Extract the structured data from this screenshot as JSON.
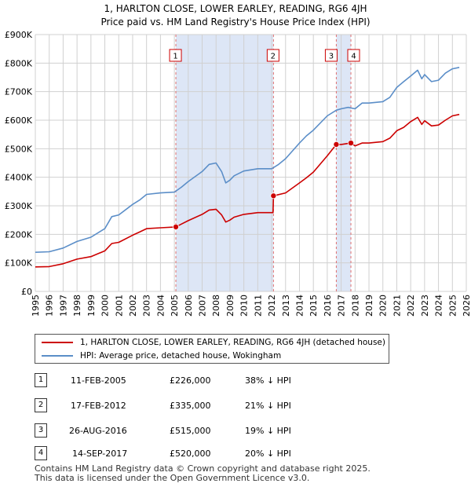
{
  "title_line1": "1, HARLTON CLOSE, LOWER EARLEY, READING, RG6 4JH",
  "title_line2": "Price paid vs. HM Land Registry's House Price Index (HPI)",
  "colors": {
    "property": "#cc0000",
    "hpi": "#5b8ec8",
    "shade": "#dde6f6",
    "marker_box": "#cc0000",
    "vline": "#e07070",
    "grid": "#d0d0d0"
  },
  "legend": {
    "property_label": "1, HARLTON CLOSE, LOWER EARLEY, READING, RG6 4JH (detached house)",
    "hpi_label": "HPI: Average price, detached house, Wokingham"
  },
  "chart_data": {
    "type": "line",
    "title": "1, HARLTON CLOSE, LOWER EARLEY, READING, RG6 4JH — Price paid vs. HM Land Registry's House Price Index (HPI)",
    "xlim": [
      1995,
      2026
    ],
    "ylim": [
      0,
      900000
    ],
    "x_ticks": [
      "1995",
      "1996",
      "1997",
      "1998",
      "1999",
      "2000",
      "2001",
      "2002",
      "2003",
      "2004",
      "2005",
      "2006",
      "2007",
      "2008",
      "2009",
      "2010",
      "2011",
      "2012",
      "2013",
      "2014",
      "2015",
      "2016",
      "2017",
      "2018",
      "2019",
      "2020",
      "2021",
      "2022",
      "2023",
      "2024",
      "2025",
      "2026"
    ],
    "y_ticks": [
      {
        "value": 0,
        "label": "£0"
      },
      {
        "value": 100000,
        "label": "£100K"
      },
      {
        "value": 200000,
        "label": "£200K"
      },
      {
        "value": 300000,
        "label": "£300K"
      },
      {
        "value": 400000,
        "label": "£400K"
      },
      {
        "value": 500000,
        "label": "£500K"
      },
      {
        "value": 600000,
        "label": "£600K"
      },
      {
        "value": 700000,
        "label": "£700K"
      },
      {
        "value": 800000,
        "label": "£800K"
      },
      {
        "value": 900000,
        "label": "£900K"
      }
    ],
    "shaded_ranges": [
      [
        2005.11,
        2012.13
      ],
      [
        2016.65,
        2017.7
      ]
    ],
    "series": [
      {
        "name": "HPI: Average price, detached house, Wokingham",
        "color": "#5b8ec8",
        "x": [
          1995,
          1996,
          1997,
          1998,
          1999,
          2000,
          2000.5,
          2001,
          2002,
          2002.5,
          2003,
          2004,
          2005,
          2005.5,
          2006,
          2007,
          2007.5,
          2008,
          2008.4,
          2008.7,
          2009,
          2009.3,
          2010,
          2011,
          2012,
          2012.5,
          2013,
          2014,
          2014.5,
          2015,
          2016,
          2016.65,
          2017,
          2017.5,
          2018,
          2018.5,
          2019,
          2020,
          2020.5,
          2021,
          2021.5,
          2022,
          2022.5,
          2022.8,
          2023,
          2023.5,
          2024,
          2024.5,
          2025,
          2025.5
        ],
        "y": [
          137000,
          139000,
          152000,
          175000,
          190000,
          220000,
          262000,
          268000,
          305000,
          320000,
          340000,
          345000,
          348000,
          365000,
          385000,
          420000,
          445000,
          450000,
          420000,
          380000,
          390000,
          405000,
          422000,
          430000,
          430000,
          445000,
          465000,
          520000,
          545000,
          565000,
          615000,
          635000,
          640000,
          645000,
          640000,
          660000,
          660000,
          665000,
          680000,
          715000,
          735000,
          755000,
          775000,
          745000,
          760000,
          735000,
          740000,
          765000,
          780000,
          785000
        ]
      },
      {
        "name": "1, HARLTON CLOSE, LOWER EARLEY, READING, RG6 4JH (detached house)",
        "color": "#cc0000",
        "x": [
          1995,
          1996,
          1997,
          1998,
          1999,
          2000,
          2000.5,
          2001,
          2002,
          2002.5,
          2003,
          2004,
          2005.11,
          2005.5,
          2006,
          2007,
          2007.5,
          2008,
          2008.4,
          2008.7,
          2009,
          2009.3,
          2010,
          2011,
          2012.1,
          2012.13,
          2013,
          2014,
          2014.5,
          2015,
          2016,
          2016.65,
          2017,
          2017.7,
          2018,
          2018.5,
          2019,
          2020,
          2020.5,
          2021,
          2021.5,
          2022,
          2022.5,
          2022.8,
          2023,
          2023.5,
          2024,
          2024.5,
          2025,
          2025.5
        ],
        "y": [
          86000,
          87000,
          97000,
          113000,
          122000,
          142000,
          168000,
          172000,
          197000,
          208000,
          220000,
          223000,
          226000,
          236000,
          248000,
          270000,
          285000,
          288000,
          268000,
          243000,
          250000,
          260000,
          270000,
          276000,
          276000,
          335000,
          345000,
          380000,
          398000,
          418000,
          475000,
          515000,
          515000,
          520000,
          510000,
          520000,
          520000,
          525000,
          537000,
          563000,
          575000,
          595000,
          610000,
          585000,
          598000,
          580000,
          583000,
          600000,
          615000,
          620000
        ]
      }
    ],
    "sales": [
      {
        "id": "1",
        "date": "11-FEB-2005",
        "x": 2005.11,
        "price": 226000,
        "price_label": "£226,000",
        "hpi_diff": "38% ↓ HPI"
      },
      {
        "id": "2",
        "date": "17-FEB-2012",
        "x": 2012.13,
        "price": 335000,
        "price_label": "£335,000",
        "hpi_diff": "21% ↓ HPI"
      },
      {
        "id": "3",
        "date": "26-AUG-2016",
        "x": 2016.65,
        "price": 515000,
        "price_label": "£515,000",
        "hpi_diff": "19% ↓ HPI"
      },
      {
        "id": "4",
        "date": "14-SEP-2017",
        "x": 2017.7,
        "price": 520000,
        "price_label": "£520,000",
        "hpi_diff": "20% ↓ HPI"
      }
    ]
  },
  "footer": {
    "line1": "Contains HM Land Registry data © Crown copyright and database right 2025.",
    "line2": "This data is licensed under the Open Government Licence v3.0."
  }
}
